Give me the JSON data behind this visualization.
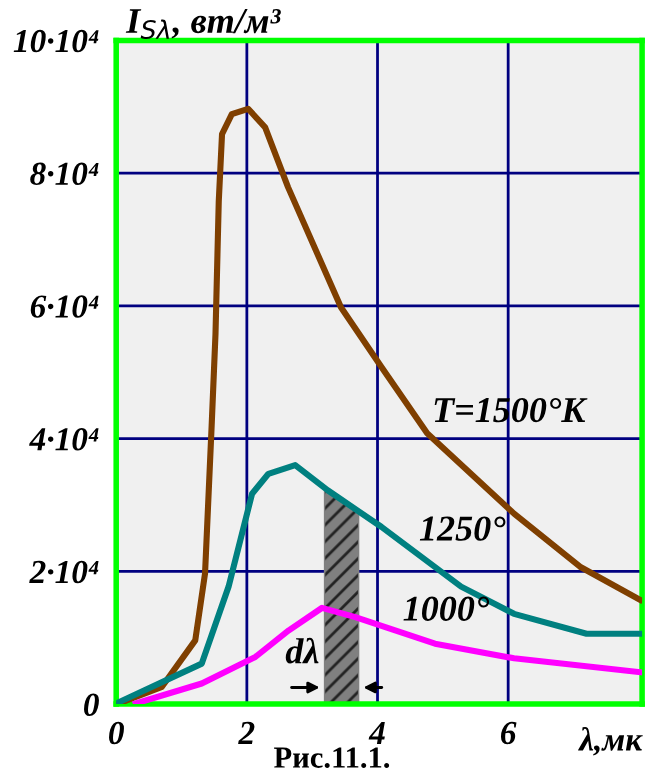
{
  "chart_data": {
    "type": "line",
    "ylabel": "I$_{Sλ}$, вт/м³",
    "xlabel": "λ,мк",
    "annotations": [
      "Рис.11.1."
    ],
    "xlim": [
      0,
      8.05
    ],
    "ylim": [
      0,
      100000
    ],
    "xticks": [
      0,
      2,
      4,
      6
    ],
    "yticks": [
      0,
      {
        "value": 20000,
        "label": "2·10⁴"
      },
      {
        "value": 40000,
        "label": "4·10⁴"
      },
      {
        "value": 60000,
        "label": "6·10⁴"
      },
      {
        "value": 80000,
        "label": "8·10⁴"
      },
      {
        "value": 100000,
        "label": "10·10⁴"
      }
    ],
    "grid": true,
    "marker": "none",
    "line_style": "solid",
    "bands": [
      {
        "axis": "x",
        "from": 3.2,
        "to": 3.7,
        "label": "dλ",
        "color": "#808080"
      }
    ],
    "series": [
      {
        "name": "T=1500°K",
        "color": "#7f3f00",
        "x": [
          0.04,
          0.7,
          1.21,
          1.36,
          1.46,
          1.52,
          1.57,
          1.62,
          1.77,
          2.02,
          2.28,
          2.63,
          3.44,
          4.06,
          4.76,
          6.09,
          7.1,
          8.02
        ],
        "values": [
          100,
          2600,
          9600,
          19700,
          41700,
          55800,
          75800,
          85900,
          88900,
          89700,
          86900,
          77900,
          59800,
          50800,
          40800,
          28700,
          20700,
          15700
        ]
      },
      {
        "name": "1250°",
        "color": "#008080",
        "x": [
          0.0,
          1.31,
          1.72,
          2.08,
          2.33,
          2.74,
          3.24,
          4.06,
          5.28,
          6.09,
          7.2,
          8.02
        ],
        "values": [
          100,
          6100,
          17700,
          31700,
          34700,
          36000,
          32200,
          26700,
          17700,
          13600,
          10600,
          10600
        ]
      },
      {
        "name": "1000°",
        "color": "#ff00ff",
        "x": [
          0.3,
          1.31,
          2.13,
          2.64,
          3.15,
          3.66,
          4.88,
          6.09,
          8.02
        ],
        "values": [
          100,
          3100,
          7100,
          11100,
          14500,
          13100,
          9100,
          6900,
          4800
        ]
      }
    ]
  }
}
